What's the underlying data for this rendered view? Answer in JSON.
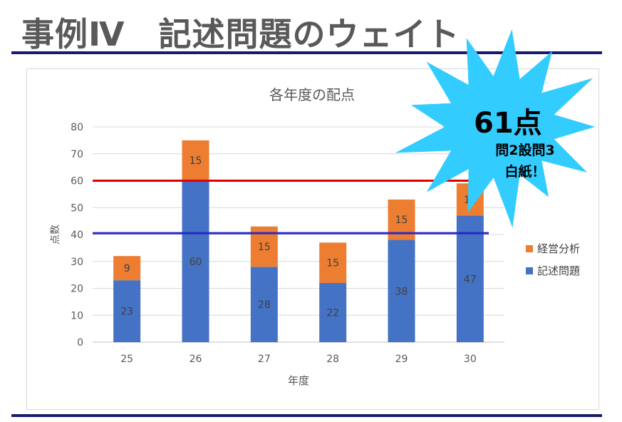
{
  "slide": {
    "title": "事例Ⅳ　記述問題のウェイト"
  },
  "chart_data": {
    "type": "bar",
    "stacked": true,
    "title": "各年度の配点",
    "xlabel": "年度",
    "ylabel": "点数",
    "categories": [
      "25",
      "26",
      "27",
      "28",
      "29",
      "30"
    ],
    "series": [
      {
        "name": "記述問題",
        "values": [
          23,
          60,
          28,
          22,
          38,
          47
        ],
        "color": "#4472c4"
      },
      {
        "name": "経営分析",
        "values": [
          9,
          15,
          15,
          15,
          15,
          12
        ],
        "color": "#ed7d31"
      }
    ],
    "ylim": [
      0,
      80
    ],
    "yticks": [
      0,
      10,
      20,
      30,
      40,
      50,
      60,
      70,
      80
    ],
    "grid": true,
    "legend_position": "right",
    "reference_lines": [
      {
        "y": 60,
        "color": "#e00000"
      },
      {
        "y": 40.5,
        "color": "#2828c8"
      }
    ]
  },
  "callout": {
    "big_text": "61点",
    "line1": "問2設問3",
    "line2": "白紙！",
    "color": "#33ccff"
  }
}
